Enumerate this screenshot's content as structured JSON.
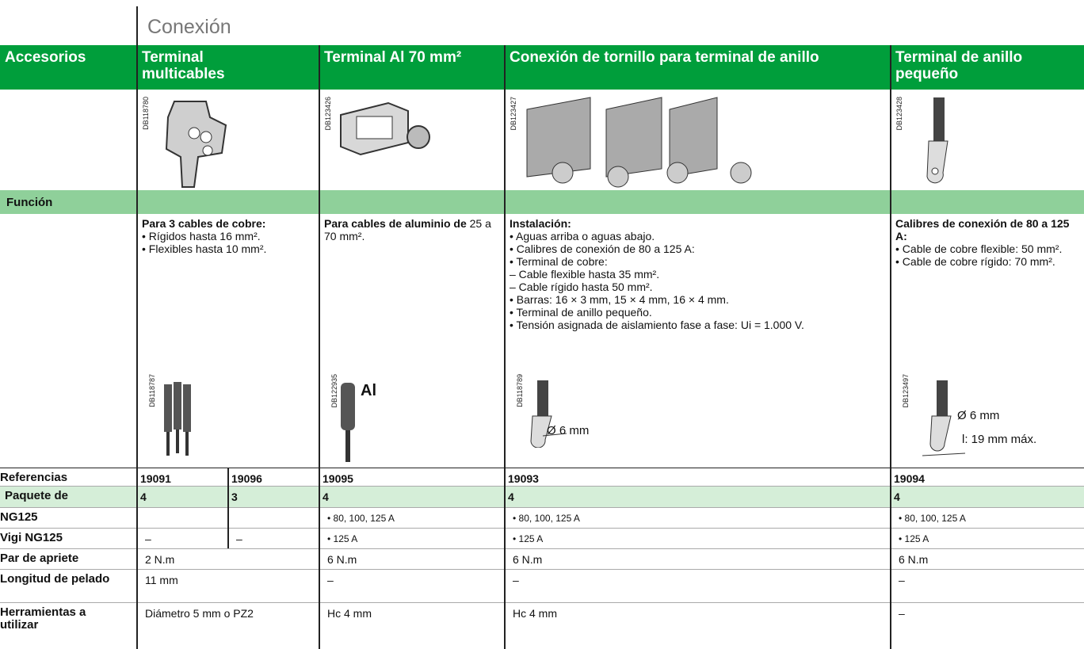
{
  "header": {
    "title": "Conexión"
  },
  "table": {
    "columns": [
      "Accesorios",
      "Terminal multicables",
      "Terminal Al 70 mm²",
      "Conexión de tornillo para terminal de anillo",
      "Terminal de anillo pequeño"
    ],
    "image_codes": [
      "DB118780",
      "DB123426",
      "DB123427",
      "DB123428"
    ],
    "section": "Función",
    "functions": [
      {
        "heading": "Para 3 cables de cobre:",
        "lines": [
          "• Rígidos hasta 16 mm².",
          "• Flexibles hasta 10 mm²."
        ]
      },
      {
        "heading": "Para cables de aluminio de",
        "tail": "25 a 70 mm²."
      },
      {
        "heading": "Instalación:",
        "lines": [
          "• Aguas arriba o aguas abajo.",
          "• Calibres de conexión de 80 a 125 A:",
          "• Terminal de cobre:",
          "– Cable flexible hasta 35 mm².",
          "– Cable rígido hasta 50 mm².",
          "• Barras: 16 × 3 mm, 15 × 4 mm, 16 × 4 mm.",
          "• Terminal de anillo pequeño.",
          "• Tensión asignada de aislamiento fase a fase: Ui = 1.000 V."
        ]
      },
      {
        "heading": "Calibres de conexión de 80 a 125 A:",
        "lines": [
          "• Cable de cobre flexible: 50 mm².",
          "• Cable de cobre rígido: 70 mm²."
        ]
      }
    ],
    "cable_images": [
      {
        "code": "DB118787"
      },
      {
        "code": "DB122935",
        "label": "Al"
      },
      {
        "code": "DB118789",
        "label": "Ø 6 mm"
      },
      {
        "code": "DB123497",
        "label": "Ø 6 mm",
        "label2": "l: 19 mm máx."
      }
    ],
    "rows": [
      {
        "label": "Referencias",
        "cells": [
          "19091",
          "19096",
          "19095",
          "19093",
          "19094"
        ]
      },
      {
        "label": "Paquete de",
        "cells": [
          "4",
          "3",
          "4",
          "4",
          "4"
        ]
      },
      {
        "label": "NG125",
        "cells": [
          null,
          null,
          "• 80, 100, 125 A",
          "• 80, 100, 125 A",
          "• 80, 100, 125 A"
        ]
      },
      {
        "label": "Vigi NG125",
        "cells": [
          "–",
          "–",
          "• 125 A",
          "• 125 A",
          "• 125 A"
        ]
      },
      {
        "label": "Par de apriete",
        "cells": [
          "2 N.m",
          "6 N.m",
          "6 N.m",
          "6 N.m"
        ]
      },
      {
        "label": "Longitud de pelado",
        "cells": [
          "11 mm",
          "–",
          "–",
          "–"
        ]
      },
      {
        "label": "Herramientas a utilizar",
        "cells": [
          "Diámetro 5 mm o PZ2",
          "Hc 4 mm",
          "Hc 4 mm",
          "–"
        ]
      }
    ]
  }
}
